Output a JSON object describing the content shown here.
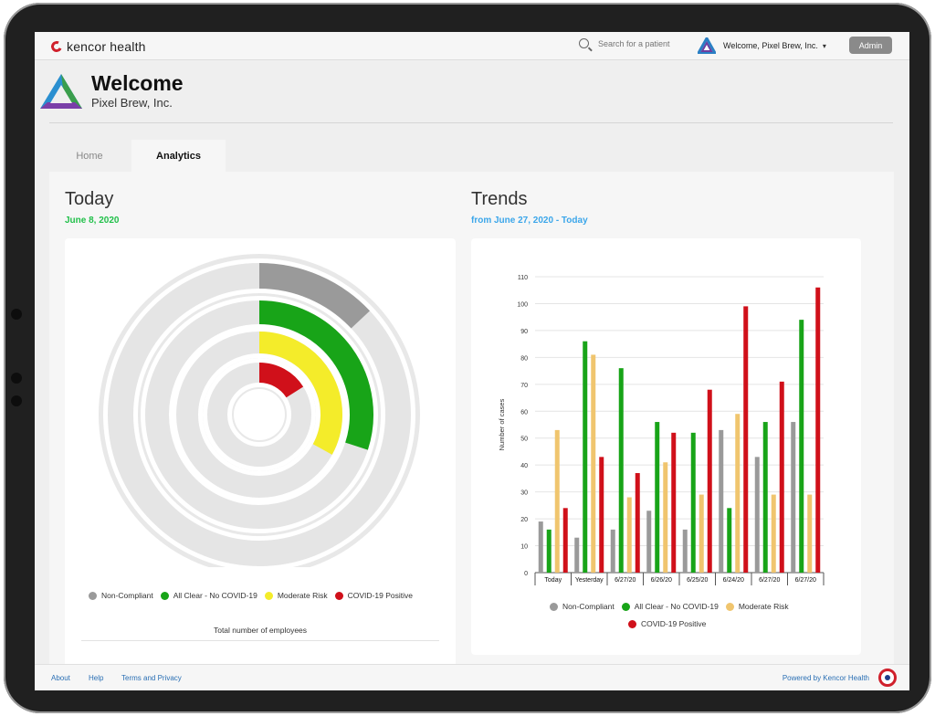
{
  "header": {
    "brand": "kencor health",
    "search_placeholder": "Search for a patient",
    "user_label": "Welcome, Pixel Brew, Inc.",
    "admin_label": "Admin"
  },
  "welcome": {
    "title": "Welcome",
    "subtitle": "Pixel Brew, Inc."
  },
  "tabs": [
    {
      "label": "Home"
    },
    {
      "label": "Analytics"
    }
  ],
  "today": {
    "title": "Today",
    "date": "June 8, 2020",
    "caption": "Total number of employees",
    "legend": [
      "Non-Compliant",
      "All Clear - No COVID-19",
      "Moderate Risk",
      "COVID-19 Positive"
    ]
  },
  "trends": {
    "title": "Trends",
    "range": "from June 27, 2020 - Today",
    "legend": [
      "Non-Compliant",
      "All Clear - No COVID-19",
      "Moderate Risk",
      "COVID-19 Positive"
    ]
  },
  "colors": {
    "non_compliant": "#9a9a9a",
    "all_clear": "#18a418",
    "moderate": "#f0c56e",
    "positive": "#d0101a",
    "ring_yellow": "#f4ec2a",
    "today_date": "#21c04a",
    "trends_range": "#3ba6ea"
  },
  "chart_data": [
    {
      "type": "donut",
      "title": "",
      "rings": [
        {
          "name": "Non-Compliant",
          "fraction": 0.13
        },
        {
          "name": "All Clear - No COVID-19",
          "fraction": 0.3
        },
        {
          "name": "Moderate Risk",
          "fraction": 0.33
        },
        {
          "name": "COVID-19 Positive",
          "fraction": 0.16
        }
      ]
    },
    {
      "type": "bar",
      "title": "",
      "xlabel": "",
      "ylabel": "Number of cases",
      "ylim": [
        0,
        110
      ],
      "yticks": [
        0,
        10,
        20,
        30,
        40,
        50,
        60,
        70,
        80,
        90,
        100,
        110
      ],
      "grid": true,
      "legend": "bottom",
      "categories": [
        "Today",
        "Yesterday",
        "6/27/20",
        "6/26/20",
        "6/25/20",
        "6/24/20",
        "6/27/20",
        "6/27/20"
      ],
      "series": [
        {
          "name": "Non-Compliant",
          "values": [
            19,
            13,
            16,
            23,
            16,
            53,
            43,
            56
          ]
        },
        {
          "name": "All Clear - No COVID-19",
          "values": [
            16,
            86,
            76,
            56,
            52,
            24,
            56,
            94
          ]
        },
        {
          "name": "Moderate Risk",
          "values": [
            53,
            81,
            28,
            41,
            29,
            59,
            29,
            29
          ]
        },
        {
          "name": "COVID-19 Positive",
          "values": [
            24,
            43,
            37,
            52,
            68,
            99,
            71,
            106
          ]
        }
      ]
    }
  ],
  "footer": {
    "links": [
      "About",
      "Help",
      "Terms and Privacy"
    ],
    "powered": "Powered by Kencor Health"
  }
}
